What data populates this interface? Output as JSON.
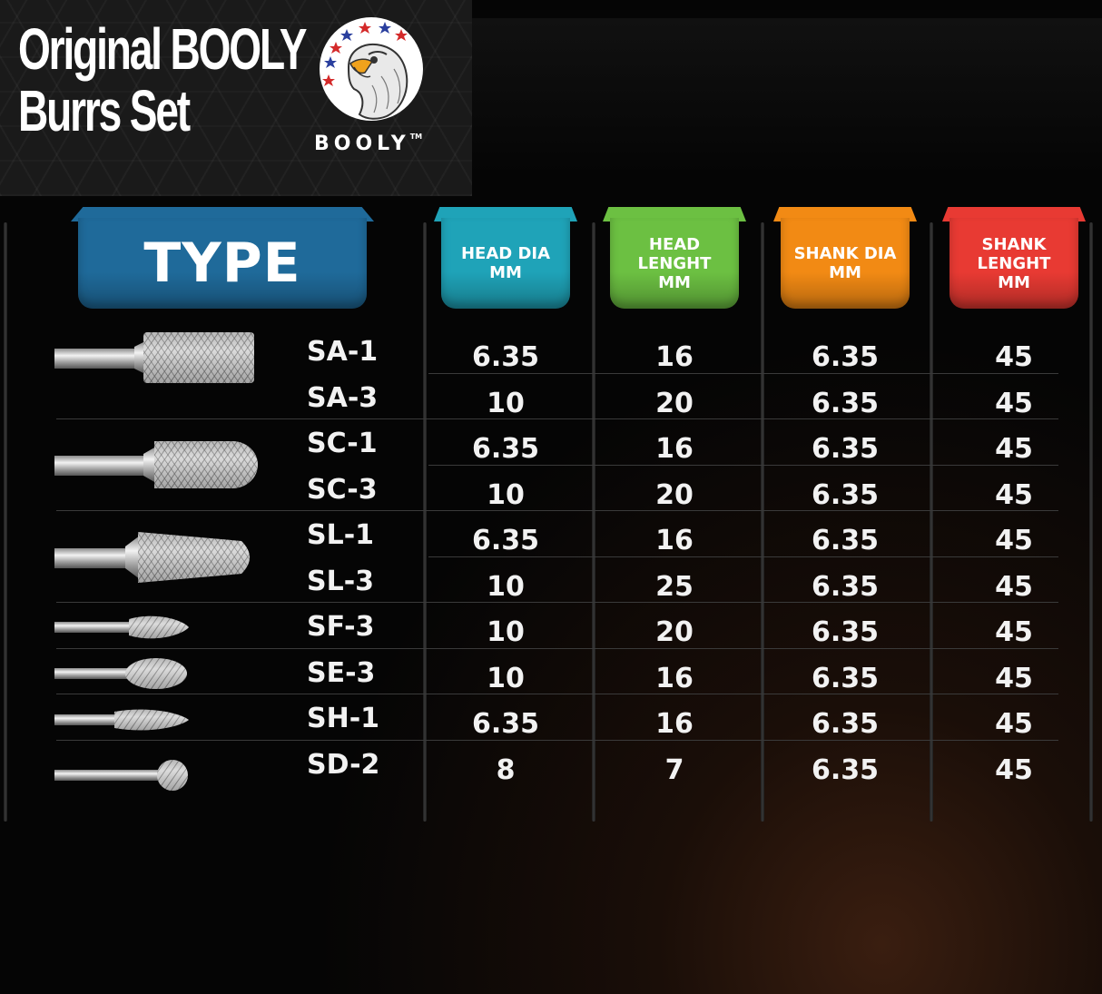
{
  "brand": {
    "title_line1": "Original BOOLY",
    "title_line2": "Burrs Set",
    "logo_text": "BOOLY",
    "logo_tm": "TM"
  },
  "headers": {
    "type": "TYPE",
    "head_dia": [
      "HEAD DIA",
      "MM"
    ],
    "head_length": [
      "HEAD",
      "LENGHT",
      "MM"
    ],
    "shank_dia": [
      "SHANK DIA",
      "MM"
    ],
    "shank_length": [
      "SHANK",
      "LENGHT",
      "MM"
    ]
  },
  "colors": {
    "type": "#1f6a9a",
    "head_dia": "#1fa3b8",
    "head_length": "#6cc042",
    "shank_dia": "#f28a14",
    "shank_length": "#e83a33"
  },
  "rows": [
    {
      "type": "SA-1",
      "head_dia": "6.35",
      "head_length": "16",
      "shank_dia": "6.35",
      "shank_length": "45"
    },
    {
      "type": "SA-3",
      "head_dia": "10",
      "head_length": "20",
      "shank_dia": "6.35",
      "shank_length": "45"
    },
    {
      "type": "SC-1",
      "head_dia": "6.35",
      "head_length": "16",
      "shank_dia": "6.35",
      "shank_length": "45"
    },
    {
      "type": "SC-3",
      "head_dia": "10",
      "head_length": "20",
      "shank_dia": "6.35",
      "shank_length": "45"
    },
    {
      "type": "SL-1",
      "head_dia": "6.35",
      "head_length": "16",
      "shank_dia": "6.35",
      "shank_length": "45"
    },
    {
      "type": "SL-3",
      "head_dia": "10",
      "head_length": "25",
      "shank_dia": "6.35",
      "shank_length": "45"
    },
    {
      "type": "SF-3",
      "head_dia": "10",
      "head_length": "20",
      "shank_dia": "6.35",
      "shank_length": "45"
    },
    {
      "type": "SE-3",
      "head_dia": "10",
      "head_length": "16",
      "shank_dia": "6.35",
      "shank_length": "45"
    },
    {
      "type": "SH-1",
      "head_dia": "6.35",
      "head_length": "16",
      "shank_dia": "6.35",
      "shank_length": "45"
    },
    {
      "type": "SD-2",
      "head_dia": "8",
      "head_length": "7",
      "shank_dia": "6.35",
      "shank_length": "45"
    }
  ],
  "burr_images": [
    "cylinder-burr-icon",
    "ball-nose-cylinder-burr-icon",
    "tree-pointed-burr-icon",
    "flame-burr-icon",
    "oval-burr-icon",
    "flame-small-burr-icon",
    "ball-burr-icon"
  ]
}
